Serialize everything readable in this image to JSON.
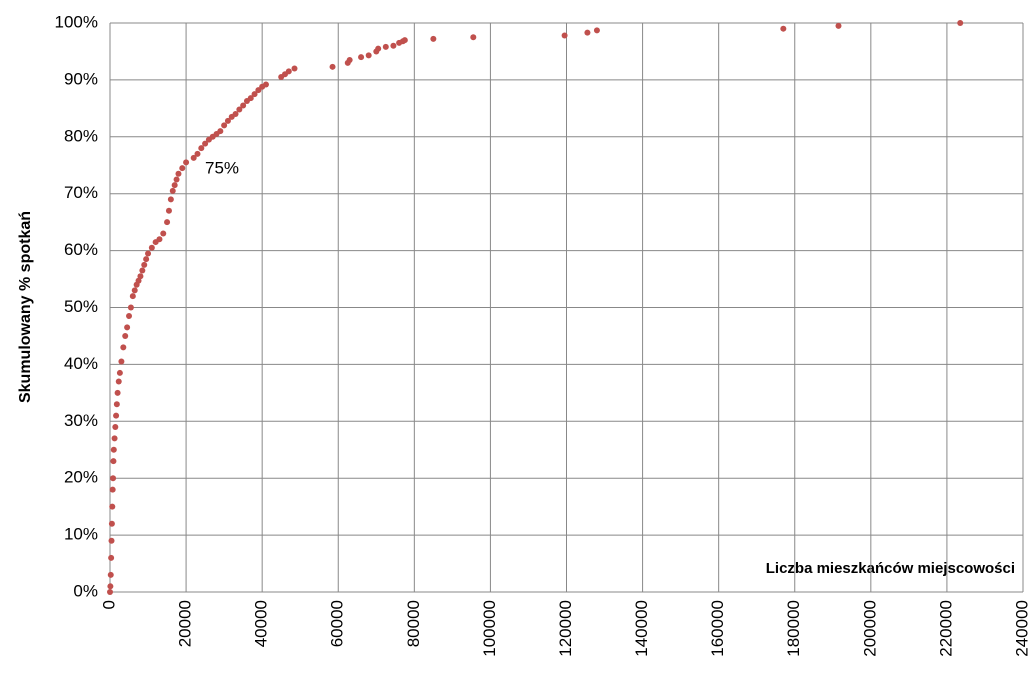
{
  "chart_data": {
    "type": "scatter",
    "ylabel": "Skumulowany % spotkań",
    "xlabel": "Liczba mieszkańców miejscowości",
    "annotation": "75%",
    "color": "#c0504d",
    "grid": true,
    "x": [
      0,
      100,
      200,
      300,
      400,
      500,
      600,
      700,
      800,
      900,
      1000,
      1200,
      1400,
      1600,
      1800,
      2000,
      2300,
      2600,
      3000,
      3500,
      4000,
      4500,
      5000,
      5500,
      6000,
      6500,
      7000,
      7500,
      8000,
      8500,
      9000,
      9500,
      10000,
      11000,
      12000,
      13000,
      14000,
      15000,
      15500,
      16000,
      16500,
      17000,
      17500,
      18000,
      19000,
      20000,
      22000,
      23000,
      24000,
      25000,
      26000,
      27000,
      28000,
      29000,
      30000,
      31000,
      32000,
      33000,
      34000,
      35000,
      36000,
      37000,
      38000,
      39000,
      40000,
      41000,
      45000,
      46000,
      47000,
      48500,
      58500,
      62500,
      63000,
      66000,
      68000,
      70000,
      70500,
      72500,
      74500,
      76000,
      77000,
      77500,
      85000,
      95500,
      119500,
      125500,
      128000,
      177000,
      191500,
      223500
    ],
    "values": [
      0,
      1,
      3,
      6,
      9,
      12,
      15,
      18,
      20,
      23,
      25,
      27,
      29,
      31,
      33,
      35,
      37,
      38.5,
      40.5,
      43,
      45,
      46.5,
      48.5,
      50,
      52,
      53,
      54,
      54.7,
      55.5,
      56.5,
      57.5,
      58.5,
      59.5,
      60.5,
      61.5,
      62,
      63,
      65,
      67,
      69,
      70.5,
      71.5,
      72.5,
      73.5,
      74.5,
      75.5,
      76.3,
      77,
      78,
      78.8,
      79.5,
      80,
      80.5,
      81,
      82,
      82.8,
      83.5,
      84,
      84.8,
      85.5,
      86.3,
      86.8,
      87.5,
      88.2,
      88.8,
      89.2,
      90.5,
      91,
      91.5,
      92,
      92.3,
      93,
      93.5,
      94,
      94.3,
      95,
      95.5,
      95.8,
      96,
      96.5,
      96.8,
      97,
      97.2,
      97.5,
      97.8,
      98.3,
      98.7,
      99,
      99.5,
      100
    ],
    "xlim": [
      0,
      240000
    ],
    "xticks": [
      0,
      20000,
      40000,
      60000,
      80000,
      100000,
      120000,
      140000,
      160000,
      180000,
      200000,
      220000,
      240000
    ],
    "ylim": [
      0,
      100
    ],
    "yticks": [
      {
        "value": 0,
        "label": "0%"
      },
      {
        "value": 10,
        "label": "10%"
      },
      {
        "value": 20,
        "label": "20%"
      },
      {
        "value": 30,
        "label": "30%"
      },
      {
        "value": 40,
        "label": "40%"
      },
      {
        "value": 50,
        "label": "50%"
      },
      {
        "value": 60,
        "label": "60%"
      },
      {
        "value": 70,
        "label": "70%"
      },
      {
        "value": 80,
        "label": "80%"
      },
      {
        "value": 90,
        "label": "90%"
      },
      {
        "value": 100,
        "label": "100%"
      }
    ]
  }
}
